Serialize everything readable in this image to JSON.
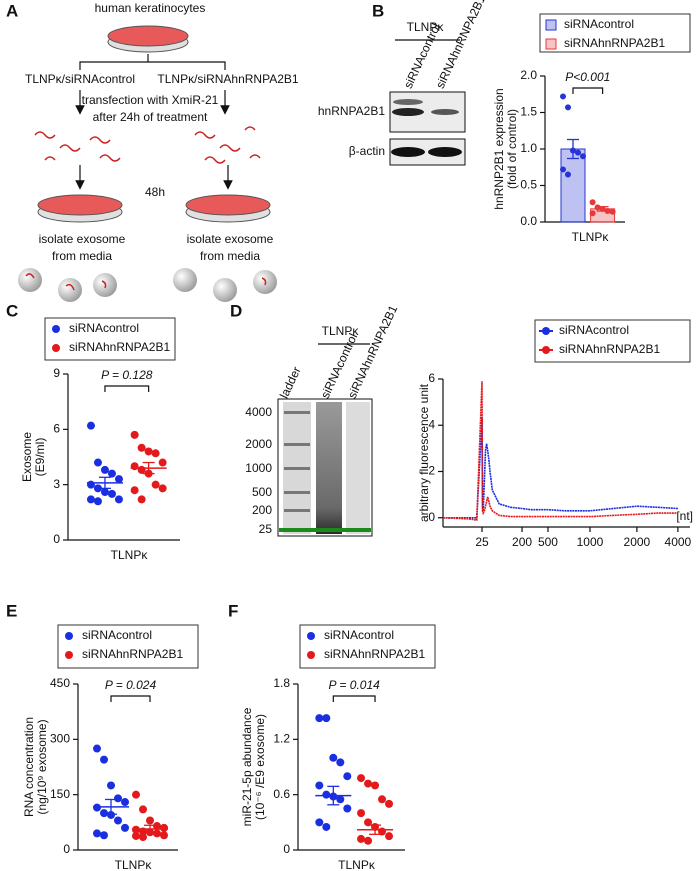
{
  "figure": {
    "panel_labels": [
      "A",
      "B",
      "C",
      "D",
      "E",
      "F"
    ],
    "panel_a": {
      "title": "human keratinocytes",
      "left_branch": "TLNPκ/siRNAcontrol",
      "right_branch": "TLNPκ/siRNAhnRNPA2B1",
      "treatment": [
        "transfection with XmiR-21",
        "after 24h of treatment"
      ],
      "time": "48h",
      "isolate": [
        "isolate exosome",
        "from media"
      ]
    },
    "panel_b_blot": {
      "group": "TLNPκ",
      "lanes": [
        "siRNAcontrol",
        "siRNAhnRNPA2B1"
      ],
      "rows": [
        "hnRNPA2B1",
        "β-actin"
      ]
    },
    "panel_d_gel": {
      "group": "TLNPκ",
      "lanes": [
        "ladder",
        "siRNAcontrol",
        "siRNAhnRNPA2B1"
      ],
      "sizes": [
        "4000",
        "2000",
        "1000",
        "500",
        "200",
        "25"
      ]
    }
  },
  "chart_data": [
    {
      "type": "bar",
      "ylabel": [
        "hnRNP2B1 expression",
        "(fold of control)"
      ],
      "categories": [
        "TLNPκ"
      ],
      "annotation": "P<0.001",
      "ylim": [
        0,
        2
      ],
      "yticks": [
        {
          "value": 0,
          "label": "0.0"
        },
        {
          "value": 0.5,
          "label": "0.5"
        },
        {
          "value": 1,
          "label": "1.0"
        },
        {
          "value": 1.5,
          "label": "1.5"
        },
        {
          "value": 2,
          "label": "2.0"
        }
      ],
      "series": [
        {
          "name": "siRNAcontrol",
          "color": "#2634d6",
          "values": [
            1.0
          ],
          "errors": [
            0.13
          ],
          "points": [
            1.72,
            1.57,
            0.98,
            0.95,
            0.9,
            0.72,
            0.65
          ]
        },
        {
          "name": "siRNAhnRNPA2B1",
          "color": "#e8383a",
          "values": [
            0.18
          ],
          "errors": [
            0.03
          ],
          "points": [
            0.27,
            0.2,
            0.18,
            0.15,
            0.14,
            0.12
          ]
        }
      ]
    },
    {
      "type": "dot",
      "ylabel": [
        "Exosome",
        "(E9/ml)"
      ],
      "categories": [
        "TLNPκ"
      ],
      "annotation": "P = 0.128",
      "ylim": [
        0,
        9
      ],
      "yticks": [
        0,
        3,
        6,
        9
      ],
      "series": [
        {
          "name": "siRNAcontrol",
          "color": "#1a2fe0",
          "values": [
            3.1
          ],
          "errors": [
            0.3
          ],
          "points": [
            6.2,
            4.2,
            3.8,
            3.6,
            3.3,
            3.0,
            2.8,
            2.6,
            2.5,
            2.2,
            2.2,
            2.1
          ]
        },
        {
          "name": "siRNAhnRNPA2B1",
          "color": "#e3191c",
          "values": [
            3.9
          ],
          "errors": [
            0.3
          ],
          "points": [
            5.7,
            5.0,
            4.8,
            4.7,
            4.2,
            4.0,
            3.8,
            3.6,
            3.0,
            2.8,
            2.7,
            2.2
          ]
        }
      ]
    },
    {
      "type": "line",
      "ylabel": "arbitrary fluorescence unit",
      "x_unit": "[nt]",
      "xlim": [
        10,
        5000
      ],
      "xticks": [
        25,
        200,
        500,
        1000,
        2000,
        4000
      ],
      "ylim": [
        -0.4,
        6
      ],
      "yticks": [
        0,
        2,
        4,
        6
      ],
      "x": [
        10,
        20,
        23,
        25,
        27,
        30,
        35,
        40,
        45,
        50,
        55,
        60,
        70,
        100,
        150,
        200,
        300,
        500,
        700,
        1000,
        1500,
        2000,
        3000,
        4000
      ],
      "series": [
        {
          "name": "siRNAcontrol",
          "color": "#1a2fe0",
          "values": [
            0,
            0,
            0,
            4.3,
            0.5,
            0.3,
            1.5,
            2.9,
            3.2,
            2.9,
            2.5,
            2.0,
            1.2,
            0.6,
            0.45,
            0.4,
            0.35,
            0.35,
            0.3,
            0.3,
            0.4,
            0.5,
            0.45,
            0.4
          ]
        },
        {
          "name": "siRNAhnRNPA2B1",
          "color": "#e3191c",
          "values": [
            0,
            -0.05,
            -0.1,
            5.9,
            0.3,
            0.2,
            0.3,
            0.5,
            0.7,
            0.9,
            0.7,
            0.5,
            0.3,
            0.1,
            0.05,
            0.05,
            0.05,
            0.05,
            0.05,
            0.05,
            0.1,
            0.15,
            0.2,
            0.2
          ]
        }
      ]
    },
    {
      "type": "dot",
      "ylabel": [
        "RNA concentration",
        "(ng/10⁹ exosome)"
      ],
      "categories": [
        "TLNPκ"
      ],
      "annotation": "P = 0.024",
      "ylim": [
        0,
        450
      ],
      "yticks": [
        0,
        150,
        300,
        450
      ],
      "series": [
        {
          "name": "siRNAcontrol",
          "color": "#1a2fe0",
          "values": [
            117
          ],
          "errors": [
            20
          ],
          "points": [
            275,
            245,
            175,
            140,
            130,
            115,
            100,
            95,
            80,
            60,
            45,
            40
          ]
        },
        {
          "name": "siRNAhnRNPA2B1",
          "color": "#e3191c",
          "values": [
            57
          ],
          "errors": [
            10
          ],
          "points": [
            150,
            110,
            80,
            65,
            60,
            55,
            50,
            48,
            45,
            40,
            38,
            35
          ]
        }
      ]
    },
    {
      "type": "dot",
      "ylabel": [
        "miR-21-5p abundance",
        "(10⁻⁶ /E9 exosome)"
      ],
      "categories": [
        "TLNPκ"
      ],
      "annotation": "P = 0.014",
      "ylim": [
        0,
        1.8
      ],
      "yticks": [
        0,
        0.6,
        1.2,
        1.8
      ],
      "series": [
        {
          "name": "siRNAcontrol",
          "color": "#1a2fe0",
          "values": [
            0.59
          ],
          "errors": [
            0.1
          ],
          "points": [
            1.43,
            1.43,
            1.0,
            0.95,
            0.8,
            0.7,
            0.6,
            0.58,
            0.55,
            0.45,
            0.3,
            0.25
          ]
        },
        {
          "name": "siRNAhnRNPA2B1",
          "color": "#e3191c",
          "values": [
            0.22
          ],
          "errors": [
            0.05
          ],
          "points": [
            0.78,
            0.72,
            0.7,
            0.55,
            0.5,
            0.4,
            0.3,
            0.25,
            0.2,
            0.15,
            0.12,
            0.1
          ]
        }
      ]
    }
  ]
}
